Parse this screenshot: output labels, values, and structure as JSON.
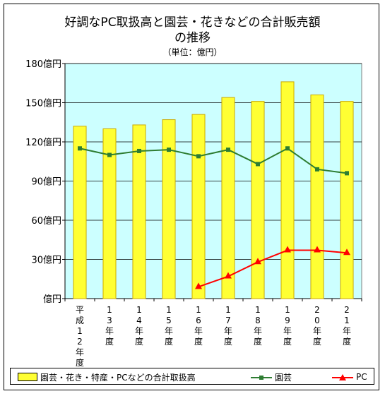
{
  "title_line1": "好調なPC取扱高と園芸・花きなどの合計販売額",
  "title_line2": "の推移",
  "subtitle": "（単位：億円）",
  "colors": {
    "plot_bg": "#ccffff",
    "bar_fill": "#ffff33",
    "bar_edge": "#ccaa00",
    "engei_line": "#2e7d32",
    "engei_marker": "#2e7d32",
    "pc_line": "#ff0000"
  },
  "legend": {
    "total_label": "園芸・花き・特産・PCなどの合計取扱高",
    "engei_label": "園芸",
    "pc_label": "PC"
  },
  "chart_data": {
    "type": "bar",
    "title": "好調なPC取扱高と園芸・花きなどの合計販売額の推移",
    "unit_note": "（単位：億円）",
    "categories": [
      "平成12年度",
      "13年度",
      "14年度",
      "15年度",
      "16年度",
      "17年度",
      "18年度",
      "19年度",
      "20年度",
      "21年度"
    ],
    "ylim": [
      0,
      180
    ],
    "yticks": [
      0,
      30,
      60,
      90,
      120,
      150,
      180
    ],
    "ytick_labels": [
      "億円",
      "30億円",
      "60億円",
      "90億円",
      "120億円",
      "150億円",
      "180億円"
    ],
    "grid": "horizontal",
    "legend_position": "bottom",
    "series": [
      {
        "name": "園芸・花き・特産・PCなどの合計取扱高",
        "kind": "bar",
        "values": [
          132,
          130,
          133,
          137,
          141,
          154,
          151,
          166,
          156,
          151
        ]
      },
      {
        "name": "園芸",
        "kind": "line",
        "marker": "square",
        "values": [
          115,
          110,
          113,
          114,
          109,
          114,
          103,
          115,
          99,
          96
        ]
      },
      {
        "name": "PC",
        "kind": "line",
        "marker": "triangle",
        "values": [
          null,
          null,
          null,
          null,
          9,
          17,
          28,
          37,
          37,
          35
        ]
      }
    ]
  }
}
